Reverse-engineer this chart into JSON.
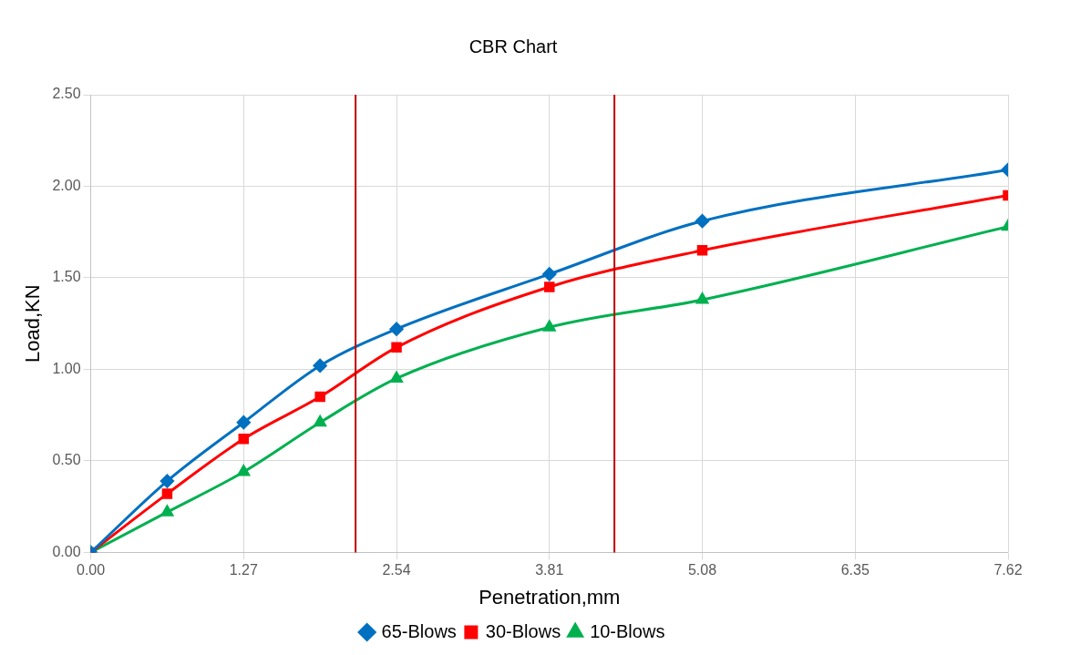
{
  "chart_data": {
    "type": "line",
    "title": "CBR Chart",
    "xlabel": "Penetration,mm",
    "ylabel": "Load,KN",
    "xlim": [
      0,
      7.62
    ],
    "xticks": [
      {
        "value": 0,
        "label": "0.00"
      },
      1.27,
      2.54,
      3.81,
      5.08,
      6.35,
      7.62
    ],
    "ylim": [
      0,
      2.5
    ],
    "yticks": [
      {
        "value": 0,
        "label": "0.00"
      },
      {
        "value": 0.5,
        "label": "0.50"
      },
      {
        "value": 1,
        "label": "1.00"
      },
      {
        "value": 1.5,
        "label": "1.50"
      },
      {
        "value": 2,
        "label": "2.00"
      },
      {
        "value": 2.5,
        "label": "2.50"
      }
    ],
    "x": [
      0,
      0.635,
      1.27,
      1.905,
      2.54,
      3.81,
      5.08,
      7.62
    ],
    "series": [
      {
        "name": "65-Blows",
        "color": "#0070c0",
        "marker": "diamond",
        "values": [
          0,
          0.39,
          0.71,
          1.02,
          1.22,
          1.52,
          1.81,
          2.09
        ]
      },
      {
        "name": "30-Blows",
        "color": "#ff0000",
        "marker": "square",
        "values": [
          0,
          0.32,
          0.62,
          0.85,
          1.12,
          1.45,
          1.65,
          1.95
        ]
      },
      {
        "name": "10-Blows",
        "color": "#00b050",
        "marker": "triangle",
        "values": [
          0,
          0.22,
          0.44,
          0.71,
          0.95,
          1.23,
          1.38,
          1.78
        ]
      }
    ],
    "ref_lines": [
      {
        "axis": "x",
        "value": 2.2,
        "color": "#c00000"
      },
      {
        "axis": "x",
        "value": 4.35,
        "color": "#c00000"
      }
    ],
    "grid": true,
    "legend": "bottom"
  }
}
